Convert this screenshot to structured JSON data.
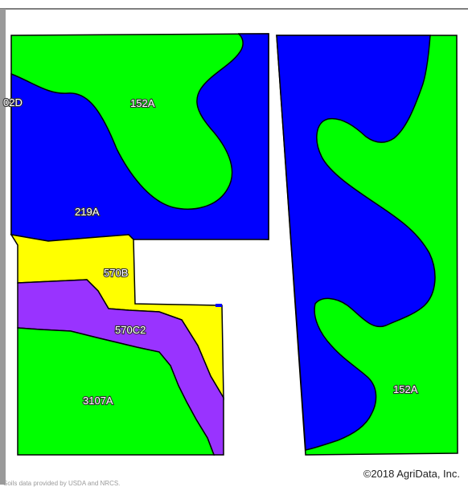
{
  "colors": {
    "green": "#00ff00",
    "blue": "#0000ff",
    "yellow": "#ffff00",
    "purple": "#9933ff",
    "outline": "#000000"
  },
  "map": {
    "labels": {
      "u02d": "02D",
      "u152a_north": "152A",
      "u219a": "219A",
      "u570b": "570B",
      "u570c2": "570C2",
      "u3107a": "3107A",
      "u152a_east": "152A"
    },
    "copyright": "©2018 AgriData, Inc.",
    "footer_text": "Soils data provided by USDA and NRCS."
  }
}
